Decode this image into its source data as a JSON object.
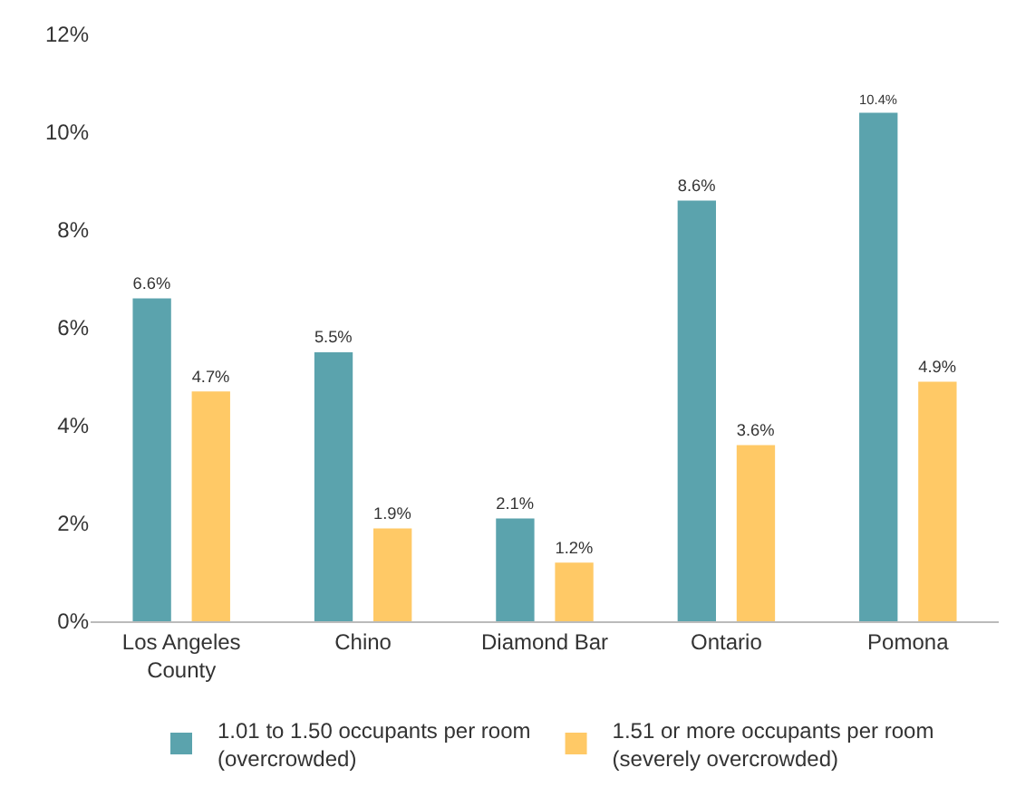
{
  "chart_data": {
    "type": "bar",
    "categories": [
      "Los Angeles\nCounty",
      "Chino",
      "Diamond Bar",
      "Ontario",
      "Pomona"
    ],
    "series": [
      {
        "name": "1.01 to 1.50 occupants per room\n(overcrowded)",
        "color": "#5ba3ad",
        "values": [
          6.6,
          5.5,
          2.1,
          8.6,
          10.4
        ],
        "value_labels": [
          "6.6%",
          "5.5%",
          "2.1%",
          "8.6%",
          "10.4%"
        ]
      },
      {
        "name": "1.51 or more occupants per room\n(severely overcrowded)",
        "color": "#ffc966",
        "values": [
          4.7,
          1.9,
          1.2,
          3.6,
          4.9
        ],
        "value_labels": [
          "4.7%",
          "1.9%",
          "1.2%",
          "3.6%",
          "4.9%"
        ]
      }
    ],
    "ylim": [
      0,
      12
    ],
    "yticks": [
      {
        "value": 0,
        "label": "0%"
      },
      {
        "value": 2,
        "label": "2%"
      },
      {
        "value": 4,
        "label": "4%"
      },
      {
        "value": 6,
        "label": "6%"
      },
      {
        "value": 8,
        "label": "8%"
      },
      {
        "value": 10,
        "label": "10%"
      },
      {
        "value": 12,
        "label": "12%"
      }
    ],
    "grid": false,
    "legend": "bottom"
  }
}
